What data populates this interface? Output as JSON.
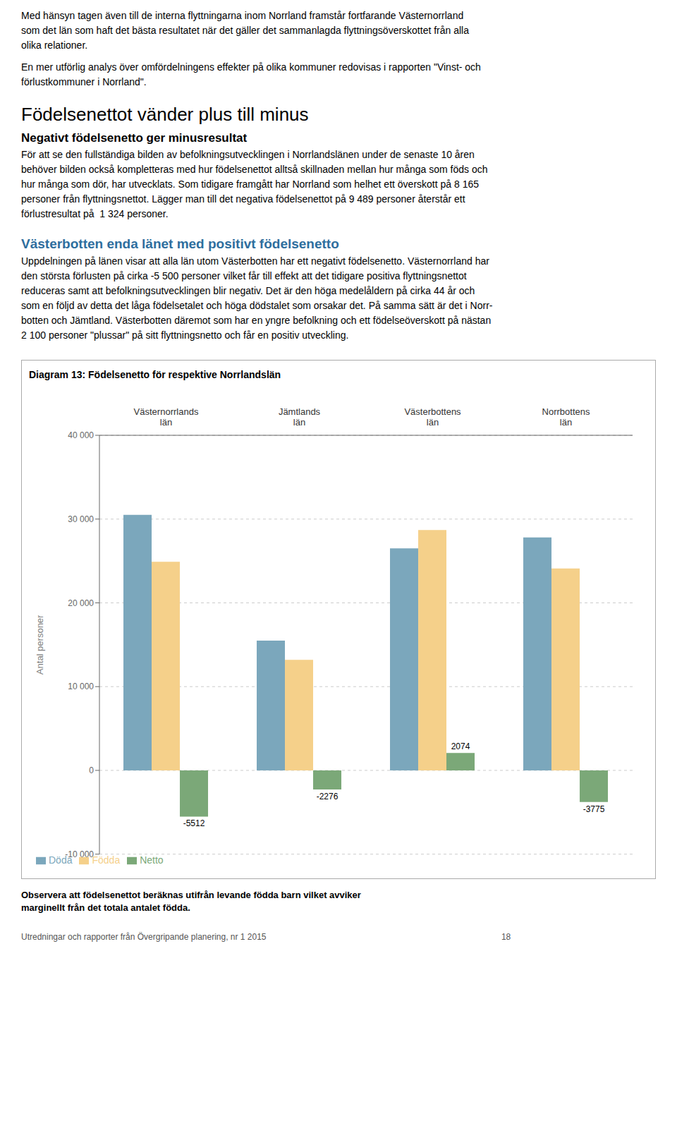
{
  "chart_data": {
    "type": "bar",
    "title": "Diagram 13: Födelsenetto för respektive Norrlandslän",
    "ylabel": "Antal personer",
    "categories": [
      "Västernorrlands\nlän",
      "Jämtlands\nlän",
      "Västerbottens\nlän",
      "Norrbottens\nlän"
    ],
    "series": [
      {
        "name": "Döda",
        "color": "#7BA7BC",
        "values": [
          30500,
          15500,
          26500,
          27800
        ]
      },
      {
        "name": "Födda",
        "color": "#F5D08A",
        "values": [
          24900,
          13200,
          28700,
          24100
        ]
      },
      {
        "name": "Netto",
        "color": "#7BA878",
        "values": [
          -5512,
          -2276,
          2074,
          -3775
        ],
        "data_labels": true
      }
    ],
    "ylim": [
      -10000,
      40000
    ],
    "yticks": [
      {
        "value": -10000,
        "label": "-10 000"
      },
      0,
      {
        "value": 10000,
        "label": "10 000"
      },
      {
        "value": 20000,
        "label": "20 000"
      },
      {
        "value": 30000,
        "label": "30 000"
      },
      {
        "value": 40000,
        "label": "40 000"
      }
    ],
    "grid": true,
    "legend": "lower left",
    "annotations": [
      "Med hänsyn tagen även till de interna flyttningarna inom Norrland framstår fortfarande Västernorrland",
      "som det län som haft det bästa resultatet när det gäller det sammanlagda flyttningsöverskottet från alla",
      "olika relationer.",
      "En mer utförlig analys över omfördelningens effekter på olika kommuner redovisas i rapporten \"Vinst- och",
      "förlustkommuner i Norrland\".",
      "Födelsenettot vänder plus till minus",
      "Negativt födelsenetto ger minusresultat",
      "För att se den fullständiga bilden av befolkningsutvecklingen i Norrlandslänen under de senaste 10 åren",
      "behöver bilden också kompletteras med hur födelsenettot alltså skillnaden mellan hur många som föds och",
      "hur många som dör, har utvecklats. Som tidigare framgått har Norrland som helhet ett överskott på 8 165",
      "personer från flyttningsnettot. Lägger man till det negativa födelsenettot på 9 489 personer återstår ett",
      "förlustresultat på  1 324 personer.",
      "Västerbotten enda länet med positivt födelsenetto",
      "Uppdelningen på länen visar att alla län utom Västerbotten har ett negativt födelsenetto. Västernorrland har",
      "den största förlusten på cirka -5 500 personer vilket får till effekt att det tidigare positiva flyttningsnettot",
      "reduceras samt att befolkningsutvecklingen blir negativ. Det är den höga medelåldern på cirka 44 år och",
      "som en följd av detta det låga födelsetalet och höga dödstalet som orsakar det. På samma sätt är det i Norr-",
      "botten och Jämtland. Västerbotten däremot som har en yngre befolkning och ett födelseöverskott på nästan",
      "2 100 personer \"plussar\" på sitt flyttningsnetto och får en positiv utveckling.",
      "Observera att födelsenettot beräknas utifrån levande födda barn vilket avviker\nmarginellt från det totala antalet födda.",
      "Utredningar och rapporter från Övergripande planering, nr 1 2015                                                                                                    18"
    ]
  }
}
